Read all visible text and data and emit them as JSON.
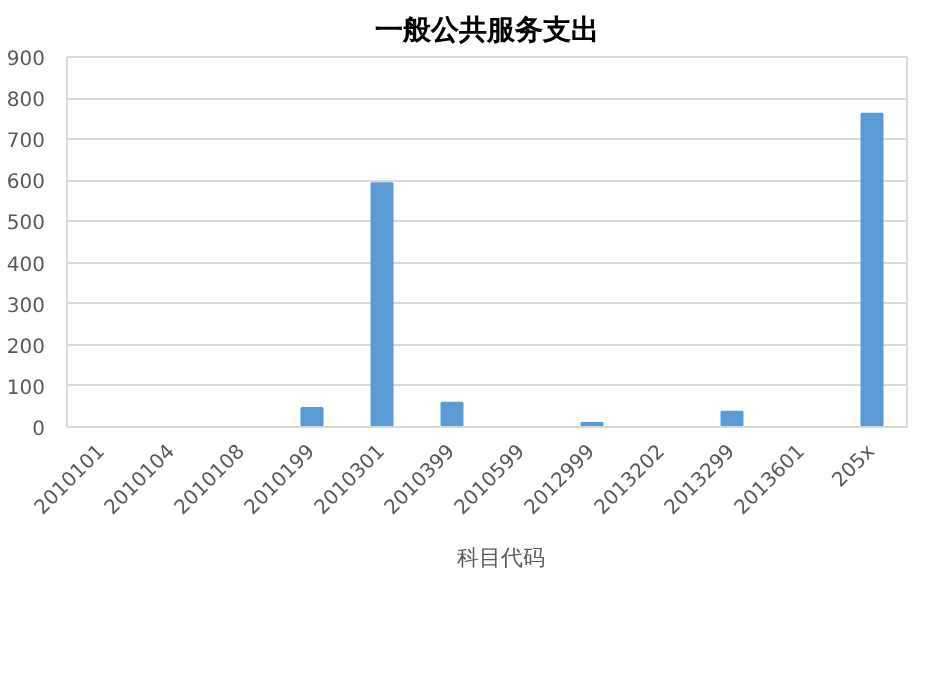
{
  "chart_data": {
    "type": "bar",
    "title": "一般公共服务支出",
    "categories": [
      "2010101",
      "2010104",
      "2010108",
      "2010199",
      "2010301",
      "2010399",
      "2010599",
      "2012999",
      "2013202",
      "2013299",
      "2013601",
      "205x"
    ],
    "series": [
      {
        "name": "科目代码",
        "color": "#5b9bd5",
        "values": [
          0,
          0,
          0,
          46,
          593,
          59,
          0,
          10,
          0,
          37,
          0,
          762
        ]
      }
    ],
    "ylim": [
      0,
      900
    ],
    "yticks": [
      0,
      100,
      200,
      300,
      400,
      500,
      600,
      700,
      800,
      900
    ],
    "grid": "y",
    "legend": "bottom"
  }
}
